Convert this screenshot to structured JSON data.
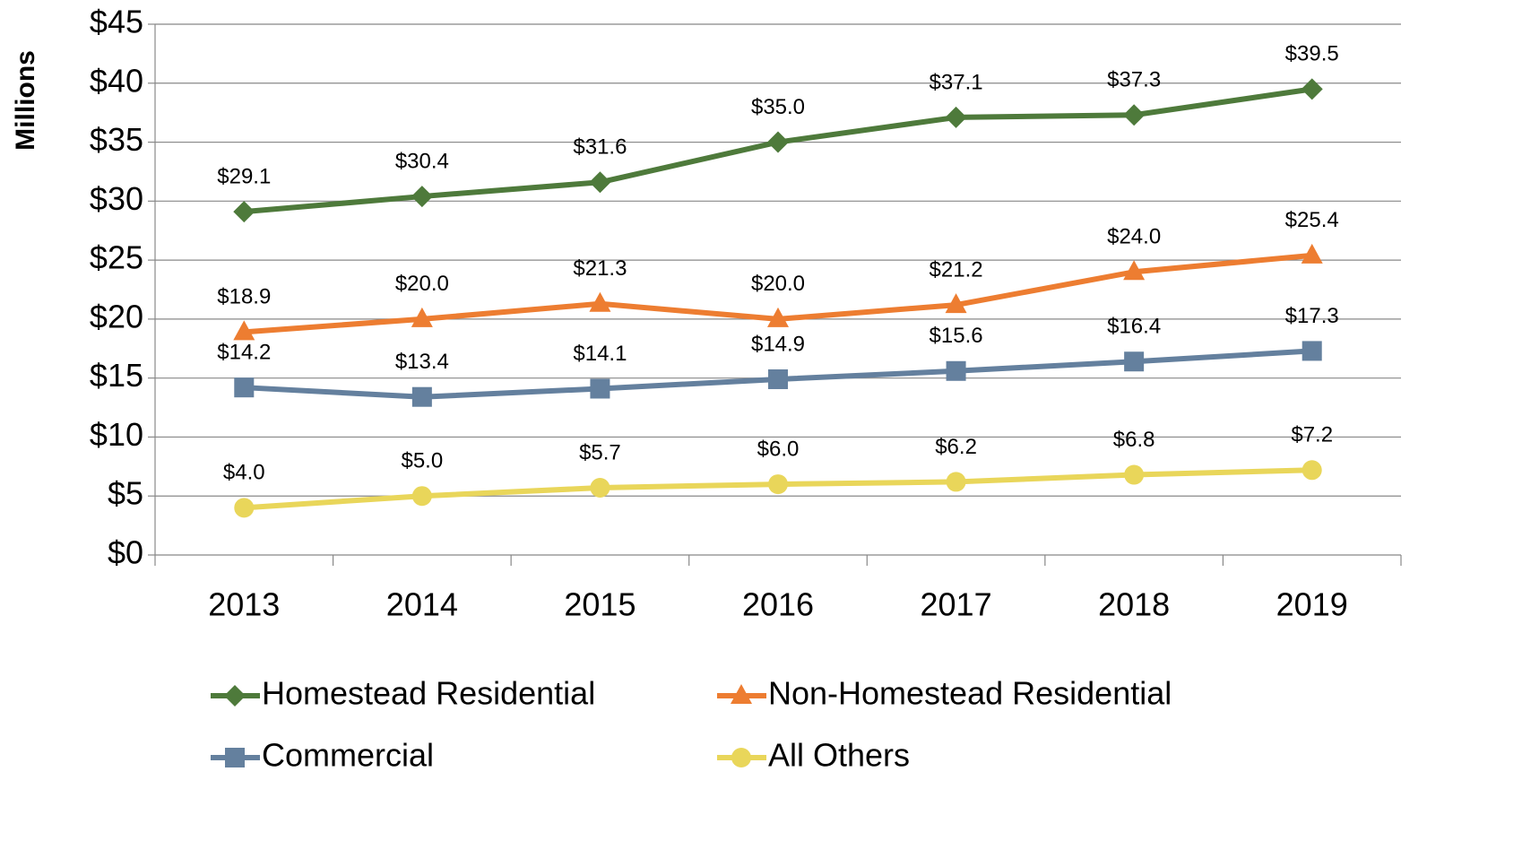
{
  "chart_data": {
    "type": "line",
    "y_label": "Millions",
    "categories": [
      "2013",
      "2014",
      "2015",
      "2016",
      "2017",
      "2018",
      "2019"
    ],
    "series": [
      {
        "name": "Homestead Residential",
        "color": "#4e7a3b",
        "marker": "diamond",
        "values": [
          29.1,
          30.4,
          31.6,
          35.0,
          37.1,
          37.3,
          39.5
        ],
        "value_labels": [
          "$29.1",
          "$30.4",
          "$31.6",
          "$35.0",
          "$37.1",
          "$37.3",
          "$39.5"
        ]
      },
      {
        "name": "Non-Homestead Residential",
        "color": "#ed7d31",
        "marker": "triangle",
        "values": [
          18.9,
          20.0,
          21.3,
          20.0,
          21.2,
          24.0,
          25.4
        ],
        "value_labels": [
          "$18.9",
          "$20.0",
          "$21.3",
          "$20.0",
          "$21.2",
          "$24.0",
          "$25.4"
        ]
      },
      {
        "name": "Commercial",
        "color": "#64809e",
        "marker": "square",
        "values": [
          14.2,
          13.4,
          14.1,
          14.9,
          15.6,
          16.4,
          17.3
        ],
        "value_labels": [
          "$14.2",
          "$13.4",
          "$14.1",
          "$14.9",
          "$15.6",
          "$16.4",
          "$17.3"
        ]
      },
      {
        "name": "All Others",
        "color": "#e9d65a",
        "marker": "circle",
        "values": [
          4.0,
          5.0,
          5.7,
          6.0,
          6.2,
          6.8,
          7.2
        ],
        "value_labels": [
          "$4.0",
          "$5.0",
          "$5.7",
          "$6.0",
          "$6.2",
          "$6.8",
          "$7.2"
        ]
      }
    ],
    "ylim": [
      0,
      45
    ],
    "yticks": [
      {
        "value": 0,
        "label": "$0"
      },
      {
        "value": 5,
        "label": "$5"
      },
      {
        "value": 10,
        "label": "$10"
      },
      {
        "value": 15,
        "label": "$15"
      },
      {
        "value": 20,
        "label": "$20"
      },
      {
        "value": 25,
        "label": "$25"
      },
      {
        "value": 30,
        "label": "$30"
      },
      {
        "value": 35,
        "label": "$35"
      },
      {
        "value": 40,
        "label": "$40"
      },
      {
        "value": 45,
        "label": "$45"
      }
    ],
    "grid": true,
    "legend": "bottom"
  }
}
